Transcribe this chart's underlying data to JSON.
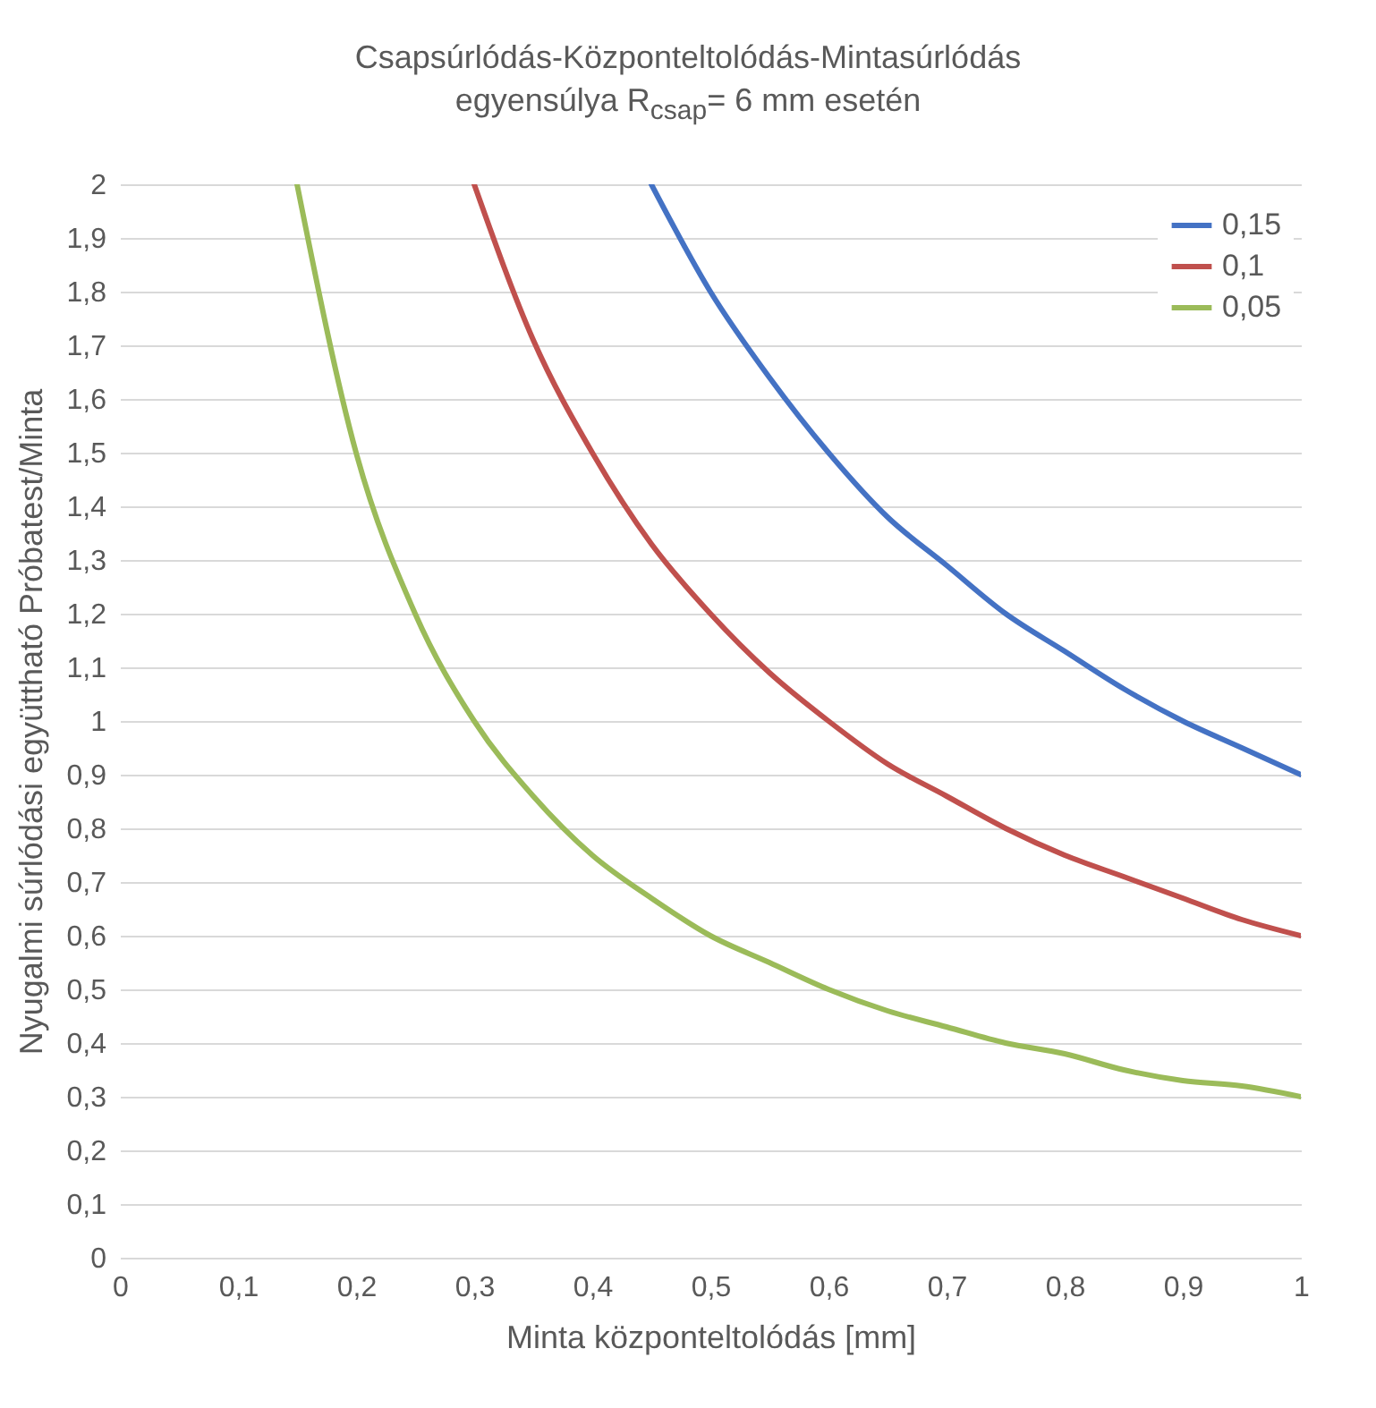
{
  "chart_data": {
    "type": "line",
    "title": "Csapsúrlódás-Központeltolódás-Mintasúrlódás",
    "subtitle": "egyensúlya  R$_{csap}$= 6 mm esetén",
    "xlabel": "Minta központeltolódás  [mm]",
    "ylabel": "Nyugalmi súrlódási együttható Próbatest/Minta",
    "series": [
      {
        "name": "0,15",
        "color": "#4472c4",
        "x": [
          0.45,
          0.5,
          0.55,
          0.6,
          0.65,
          0.7,
          0.75,
          0.8,
          0.85,
          0.9,
          0.95,
          1
        ],
        "values": [
          2,
          1.8,
          1.64,
          1.5,
          1.38,
          1.29,
          1.2,
          1.13,
          1.06,
          1,
          0.95,
          0.9
        ]
      },
      {
        "name": "0,1",
        "color": "#c0504d",
        "x": [
          0.3,
          0.35,
          0.4,
          0.45,
          0.5,
          0.55,
          0.6,
          0.65,
          0.7,
          0.75,
          0.8,
          0.85,
          0.9,
          0.95,
          1
        ],
        "values": [
          2,
          1.71,
          1.5,
          1.33,
          1.2,
          1.09,
          1,
          0.92,
          0.86,
          0.8,
          0.75,
          0.71,
          0.67,
          0.63,
          0.6
        ]
      },
      {
        "name": "0,05",
        "color": "#9bbb59",
        "x": [
          0.15,
          0.2,
          0.25,
          0.3,
          0.35,
          0.4,
          0.45,
          0.5,
          0.55,
          0.6,
          0.65,
          0.7,
          0.75,
          0.8,
          0.85,
          0.9,
          0.95,
          1
        ],
        "values": [
          2,
          1.5,
          1.2,
          1,
          0.86,
          0.75,
          0.67,
          0.6,
          0.55,
          0.5,
          0.46,
          0.43,
          0.4,
          0.38,
          0.35,
          0.33,
          0.32,
          0.3
        ]
      }
    ],
    "xlim": [
      0,
      1
    ],
    "xticks": [
      0,
      {
        "value": 0.1,
        "label": "0,1"
      },
      {
        "value": 0.2,
        "label": "0,2"
      },
      {
        "value": 0.3,
        "label": "0,3"
      },
      {
        "value": 0.4,
        "label": "0,4"
      },
      {
        "value": 0.5,
        "label": "0,5"
      },
      {
        "value": 0.6,
        "label": "0,6"
      },
      {
        "value": 0.7,
        "label": "0,7"
      },
      {
        "value": 0.8,
        "label": "0,8"
      },
      {
        "value": 0.9,
        "label": "0,9"
      },
      1
    ],
    "ylim": [
      0,
      2
    ],
    "yticks": [
      0,
      {
        "value": 0.1,
        "label": "0,1"
      },
      {
        "value": 0.2,
        "label": "0,2"
      },
      {
        "value": 0.3,
        "label": "0,3"
      },
      {
        "value": 0.4,
        "label": "0,4"
      },
      {
        "value": 0.5,
        "label": "0,5"
      },
      {
        "value": 0.6,
        "label": "0,6"
      },
      {
        "value": 0.7,
        "label": "0,7"
      },
      {
        "value": 0.8,
        "label": "0,8"
      },
      {
        "value": 0.9,
        "label": "0,9"
      },
      1,
      {
        "value": 1.1,
        "label": "1,1"
      },
      {
        "value": 1.2,
        "label": "1,2"
      },
      {
        "value": 1.3,
        "label": "1,3"
      },
      {
        "value": 1.4,
        "label": "1,4"
      },
      {
        "value": 1.5,
        "label": "1,5"
      },
      {
        "value": 1.6,
        "label": "1,6"
      },
      {
        "value": 1.7,
        "label": "1,7"
      },
      {
        "value": 1.8,
        "label": "1,8"
      },
      {
        "value": 1.9,
        "label": "1,9"
      },
      2
    ],
    "grid": "y",
    "legend": "top right",
    "line_style": "solid"
  }
}
